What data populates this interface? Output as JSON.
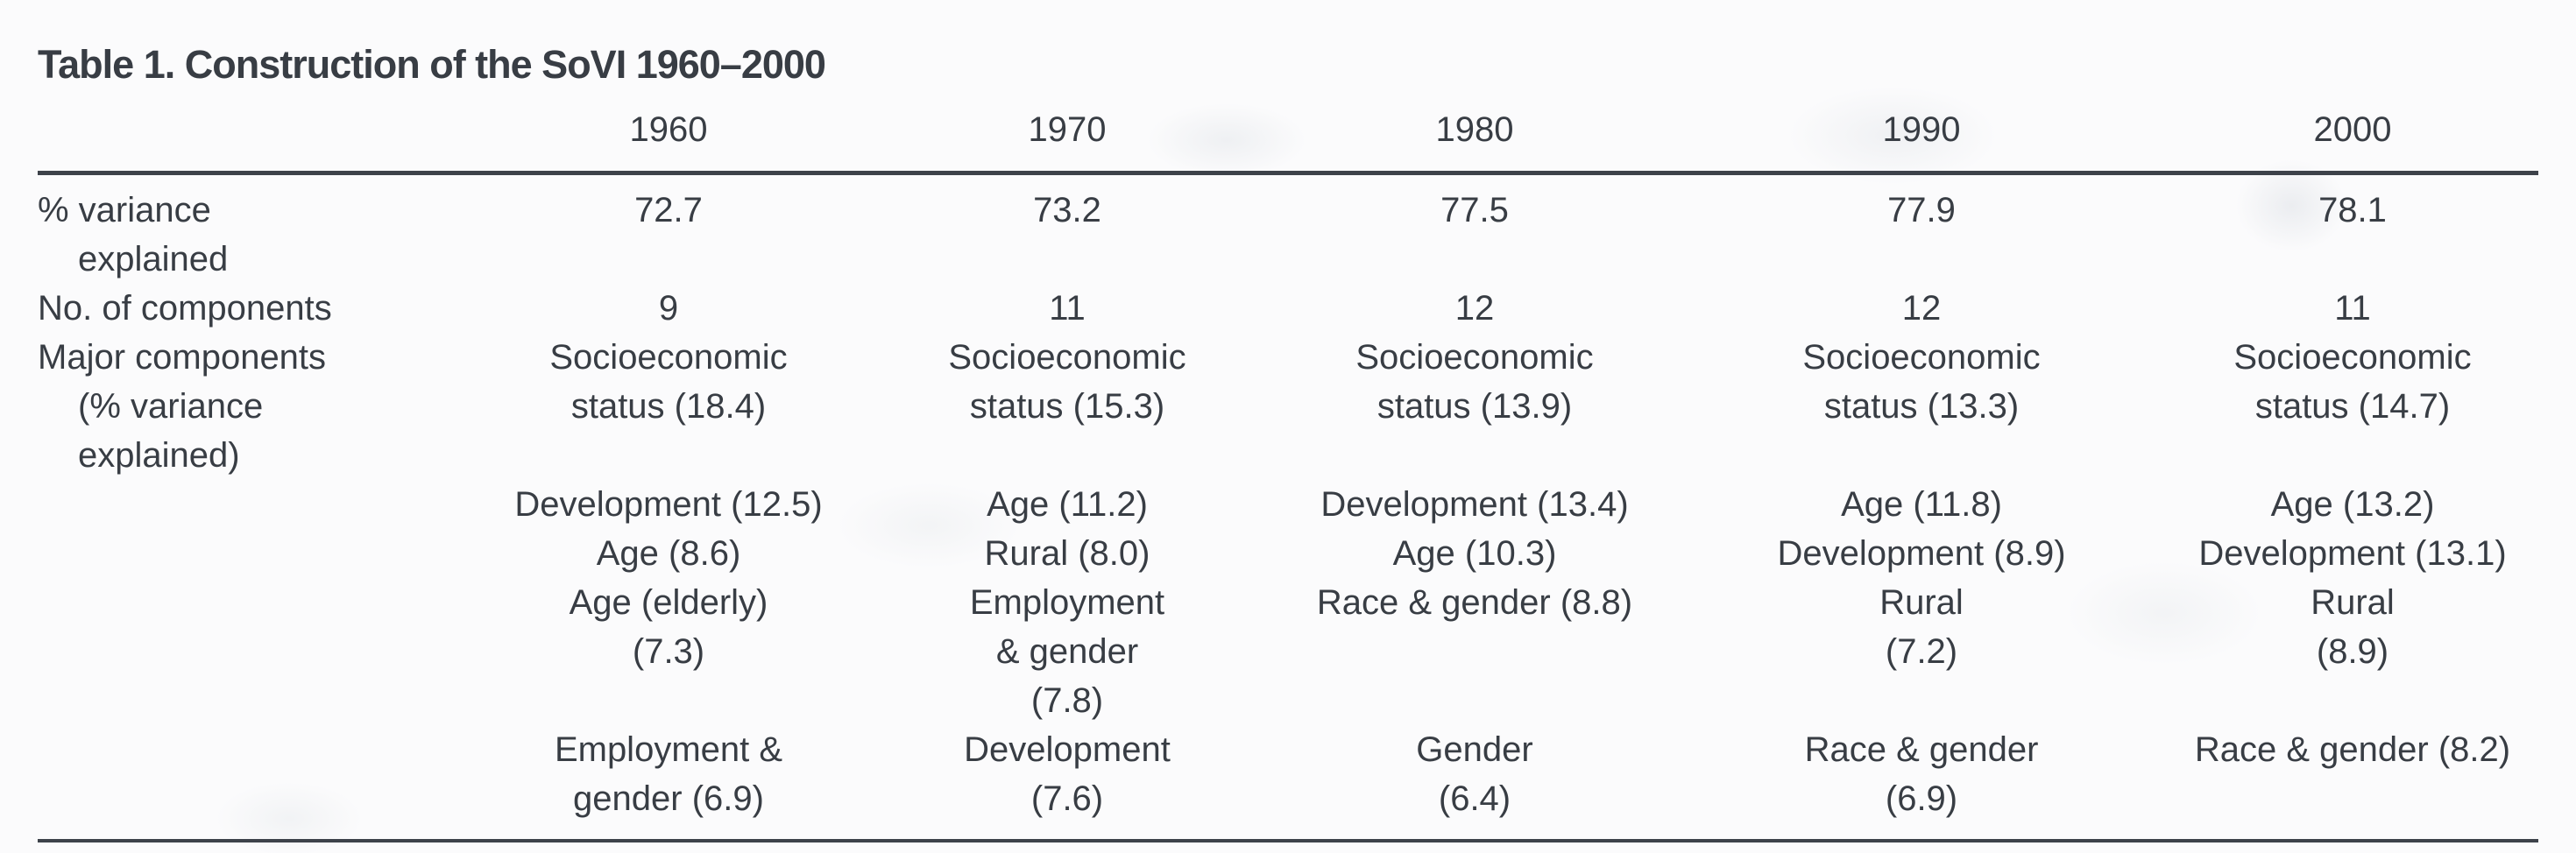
{
  "title": "Table 1. Construction of the SoVI 1960–2000",
  "columns": [
    "1960",
    "1970",
    "1980",
    "1990",
    "2000"
  ],
  "rows": [
    {
      "key": "variance-explained",
      "label_lines": [
        {
          "text": "% variance",
          "indent": false
        },
        {
          "text": "explained",
          "indent": true
        }
      ],
      "cells": [
        [
          "72.7"
        ],
        [
          "73.2"
        ],
        [
          "77.5"
        ],
        [
          "77.9"
        ],
        [
          "78.1"
        ]
      ]
    },
    {
      "key": "num-components",
      "label_lines": [
        {
          "text": "No. of components",
          "indent": false
        }
      ],
      "cells": [
        [
          "9"
        ],
        [
          "11"
        ],
        [
          "12"
        ],
        [
          "12"
        ],
        [
          "11"
        ]
      ]
    },
    {
      "key": "major-components",
      "label_lines": [
        {
          "text": "Major components",
          "indent": false
        },
        {
          "text": "(% variance",
          "indent": true
        },
        {
          "text": "explained)",
          "indent": true
        }
      ],
      "cells": [
        [
          "Socioeconomic",
          "status (18.4)",
          "",
          "Development (12.5)",
          "Age (8.6)",
          "Age (elderly)",
          "(7.3)",
          "",
          "Employment &",
          "gender (6.9)"
        ],
        [
          "Socioeconomic",
          "status (15.3)",
          "",
          "Age (11.2)",
          "Rural (8.0)",
          "Employment",
          "& gender",
          "(7.8)",
          "Development",
          "(7.6)"
        ],
        [
          "Socioeconomic",
          "status (13.9)",
          "",
          "Development (13.4)",
          "Age (10.3)",
          "Race & gender (8.8)",
          "",
          "",
          "Gender",
          "(6.4)"
        ],
        [
          "Socioeconomic",
          "status (13.3)",
          "",
          "Age (11.8)",
          "Development (8.9)",
          "Rural",
          "(7.2)",
          "",
          "Race & gender",
          "(6.9)"
        ],
        [
          "Socioeconomic",
          "status (14.7)",
          "",
          "Age (13.2)",
          "Development (13.1)",
          "Rural",
          "(8.9)",
          "",
          "Race & gender (8.2)",
          ""
        ]
      ]
    }
  ],
  "colors": {
    "text": "#383d44",
    "rule": "#3d424a",
    "background": "#fbfbfc"
  }
}
